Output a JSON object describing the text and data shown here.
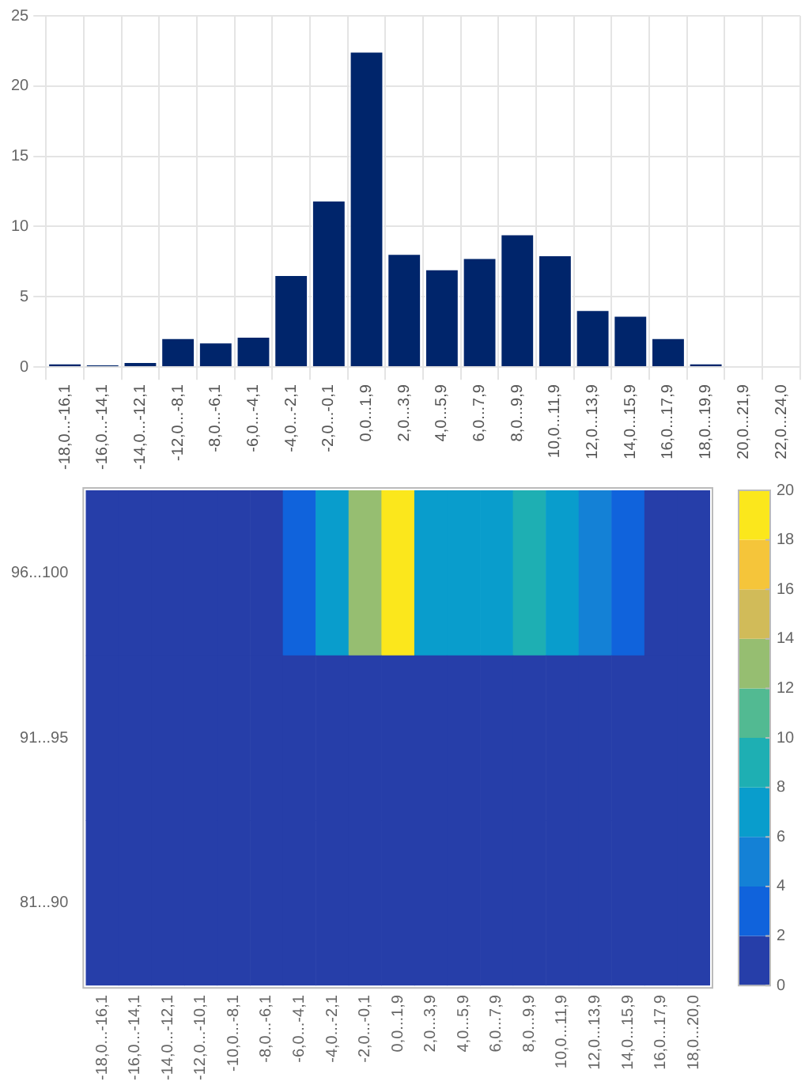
{
  "chart_data": [
    {
      "type": "bar",
      "categories": [
        "-18,0...-16,1",
        "-16,0...-14,1",
        "-14,0...-12,1",
        "-12,0...-8,1",
        "-8,0...-6,1",
        "-6,0...-4,1",
        "-4,0...-2,1",
        "-2,0...-0,1",
        "0,0...1,9",
        "2,0...3,9",
        "4,0...5,9",
        "6,0...7,9",
        "8,0...9,9",
        "10,0...11,9",
        "12,0...13,9",
        "14,0...15,9",
        "16,0...17,9",
        "18,0...19,9",
        "20,0...21,9",
        "22,0...24,0"
      ],
      "values": [
        0.3,
        0.2,
        0.4,
        2.1,
        1.8,
        2.2,
        6.6,
        11.9,
        22.5,
        8.1,
        7.0,
        7.8,
        9.5,
        8.0,
        4.1,
        3.7,
        2.1,
        0.3,
        0,
        0
      ],
      "color": "#00256b",
      "ylim": [
        0,
        25
      ],
      "yticks": [
        0,
        5,
        10,
        15,
        20,
        25
      ],
      "grid": true
    },
    {
      "type": "heatmap",
      "categories": [
        "-18,0...-16,1",
        "-16,0...-14,1",
        "-14,0...-12,1",
        "-12,0...-10,1",
        "-10,0...-8,1",
        "-8,0...-6,1",
        "-6,0...-4,1",
        "-4,0...-2,1",
        "-2,0...-0,1",
        "0,0...1,9",
        "2,0...3,9",
        "4,0...5,9",
        "6,0...7,9",
        "8,0...9,9",
        "10,0...11,9",
        "12,0...13,9",
        "14,0...15,9",
        "16,0...17,9",
        "18,0...20,0"
      ],
      "y_categories": [
        "96...100",
        "91...95",
        "81...90"
      ],
      "cells": [
        [
          0,
          0,
          0,
          0,
          0,
          0,
          2,
          6,
          12,
          20,
          7,
          6,
          7,
          8,
          7,
          5,
          3,
          1.5,
          0
        ],
        [
          0,
          0,
          0,
          0,
          0,
          0,
          0,
          0.5,
          0.8,
          1.1,
          1.2,
          1.2,
          1.2,
          1.3,
          1.6,
          1,
          0,
          0,
          0
        ],
        [
          0,
          0,
          0,
          0,
          0,
          0,
          0,
          0,
          0,
          0,
          0,
          0,
          0,
          0,
          0,
          0,
          0,
          0,
          0
        ]
      ],
      "clim": [
        0,
        20
      ],
      "cticks": [
        0,
        2,
        4,
        6,
        8,
        10,
        12,
        14,
        16,
        18,
        20
      ]
    }
  ]
}
